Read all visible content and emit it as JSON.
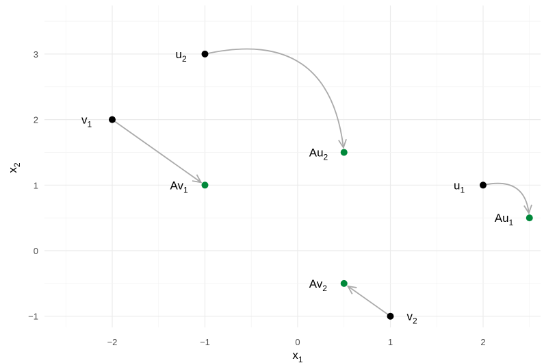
{
  "chart_data": {
    "type": "scatter",
    "title": "",
    "xlabel": {
      "base": "x",
      "sub": "1"
    },
    "ylabel": {
      "base": "x",
      "sub": "2"
    },
    "xlim": [
      -2.5,
      2.5
    ],
    "ylim": [
      -1.15,
      3.5
    ],
    "xticks": [
      -2,
      -1,
      0,
      1,
      2
    ],
    "yticks": [
      -1,
      0,
      1,
      2,
      3
    ],
    "xtick_labels": [
      "−2",
      "−1",
      "0",
      "1",
      "2"
    ],
    "ytick_labels": [
      "−1",
      "0",
      "1",
      "2",
      "3"
    ],
    "grid": true,
    "colors": {
      "original": "#000000",
      "transformed": "#00883a",
      "arrow": "#aaaaaa"
    },
    "points": [
      {
        "id": "v1",
        "label": "v",
        "sub": "1",
        "x": -2,
        "y": 2,
        "kind": "original"
      },
      {
        "id": "u2",
        "label": "u",
        "sub": "2",
        "x": -1,
        "y": 3,
        "kind": "original"
      },
      {
        "id": "u1",
        "label": "u",
        "sub": "1",
        "x": 2,
        "y": 1,
        "kind": "original"
      },
      {
        "id": "v2",
        "label": "v",
        "sub": "2",
        "x": 1,
        "y": -1,
        "kind": "original"
      },
      {
        "id": "Av1",
        "label": "Av",
        "sub": "1",
        "x": -1,
        "y": 1,
        "kind": "transformed"
      },
      {
        "id": "Au2",
        "label": "Au",
        "sub": "2",
        "x": 0.5,
        "y": 1.5,
        "kind": "transformed"
      },
      {
        "id": "Au1",
        "label": "Au",
        "sub": "1",
        "x": 2.5,
        "y": 0.5,
        "kind": "transformed"
      },
      {
        "id": "Av2",
        "label": "Av",
        "sub": "2",
        "x": 0.5,
        "y": -0.5,
        "kind": "transformed"
      }
    ],
    "arrows": [
      {
        "from": "v1",
        "to": "Av1",
        "curved": false
      },
      {
        "from": "u2",
        "to": "Au2",
        "curved": true
      },
      {
        "from": "u1",
        "to": "Au1",
        "curved": true
      },
      {
        "from": "v2",
        "to": "Av2",
        "curved": false
      }
    ]
  }
}
